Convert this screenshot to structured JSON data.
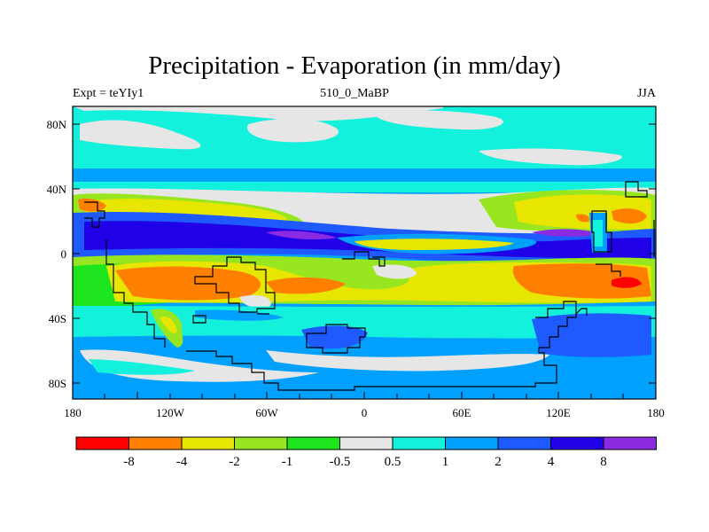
{
  "title": "Precipitation - Evaporation (in mm/day)",
  "subtitle_left": "Expt = teYIy1",
  "subtitle_center": "510_0_MaBP",
  "subtitle_right": "JJA",
  "lat_labels": [
    "80N",
    "40N",
    "0",
    "40S",
    "80S"
  ],
  "lon_labels": [
    "180",
    "120W",
    "60W",
    "0",
    "60E",
    "120E",
    "180"
  ],
  "colorbar": {
    "colors": [
      "#ff0000",
      "#ff7f00",
      "#e6e600",
      "#98e620",
      "#1ee61e",
      "#e6e6e6",
      "#13f0dc",
      "#00a0ff",
      "#1e5aff",
      "#2000e6",
      "#8a2be2"
    ],
    "labels": [
      "-8",
      "-4",
      "-2",
      "-1",
      "-0.5",
      "0.5",
      "1",
      "2",
      "4",
      "8"
    ]
  }
}
